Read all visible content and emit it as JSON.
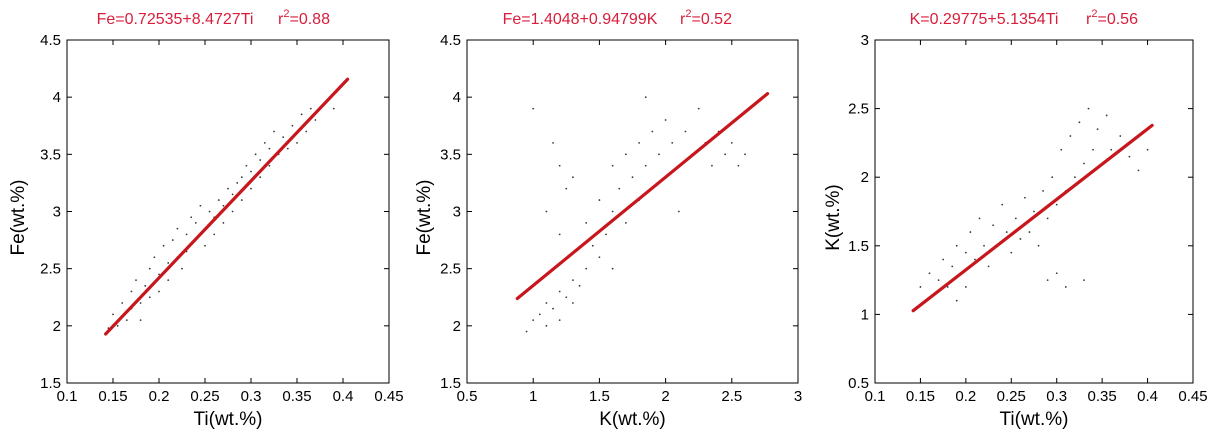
{
  "chart_data": [
    {
      "type": "scatter",
      "title": "Fe=0.72535+8.4727Ti",
      "r2_label": "r",
      "r2_value": "=0.88",
      "xlabel": "Ti(wt.%)",
      "ylabel": "Fe(wt.%)",
      "xlim": [
        0.1,
        0.45
      ],
      "ylim": [
        1.5,
        4.5
      ],
      "xticks": [
        "0.1",
        "0.15",
        "0.2",
        "0.25",
        "0.3",
        "0.35",
        "0.4",
        "0.45"
      ],
      "yticks": [
        "1.5",
        "2",
        "2.5",
        "3",
        "3.5",
        "4",
        "4.5"
      ],
      "fit": {
        "intercept": 0.72535,
        "slope": 8.4727,
        "x_range": [
          0.142,
          0.405
        ]
      },
      "points": [
        [
          0.145,
          1.98
        ],
        [
          0.15,
          2.1
        ],
        [
          0.155,
          2.0
        ],
        [
          0.16,
          2.2
        ],
        [
          0.165,
          2.05
        ],
        [
          0.17,
          2.3
        ],
        [
          0.17,
          2.15
        ],
        [
          0.175,
          2.4
        ],
        [
          0.18,
          2.2
        ],
        [
          0.18,
          2.05
        ],
        [
          0.185,
          2.35
        ],
        [
          0.19,
          2.5
        ],
        [
          0.19,
          2.25
        ],
        [
          0.195,
          2.6
        ],
        [
          0.2,
          2.3
        ],
        [
          0.2,
          2.45
        ],
        [
          0.205,
          2.7
        ],
        [
          0.21,
          2.55
        ],
        [
          0.21,
          2.4
        ],
        [
          0.215,
          2.75
        ],
        [
          0.22,
          2.6
        ],
        [
          0.22,
          2.85
        ],
        [
          0.225,
          2.5
        ],
        [
          0.23,
          2.8
        ],
        [
          0.23,
          2.65
        ],
        [
          0.235,
          2.95
        ],
        [
          0.24,
          2.75
        ],
        [
          0.24,
          2.9
        ],
        [
          0.245,
          3.05
        ],
        [
          0.25,
          2.85
        ],
        [
          0.25,
          2.7
        ],
        [
          0.255,
          3.0
        ],
        [
          0.26,
          2.95
        ],
        [
          0.26,
          2.8
        ],
        [
          0.265,
          3.1
        ],
        [
          0.27,
          2.9
        ],
        [
          0.27,
          3.05
        ],
        [
          0.275,
          3.2
        ],
        [
          0.28,
          3.0
        ],
        [
          0.28,
          3.15
        ],
        [
          0.285,
          3.25
        ],
        [
          0.29,
          3.1
        ],
        [
          0.29,
          3.3
        ],
        [
          0.295,
          3.4
        ],
        [
          0.3,
          3.2
        ],
        [
          0.3,
          3.35
        ],
        [
          0.305,
          3.5
        ],
        [
          0.31,
          3.3
        ],
        [
          0.31,
          3.45
        ],
        [
          0.315,
          3.6
        ],
        [
          0.32,
          3.4
        ],
        [
          0.32,
          3.55
        ],
        [
          0.325,
          3.7
        ],
        [
          0.33,
          3.5
        ],
        [
          0.335,
          3.65
        ],
        [
          0.34,
          3.55
        ],
        [
          0.345,
          3.75
        ],
        [
          0.35,
          3.6
        ],
        [
          0.355,
          3.85
        ],
        [
          0.36,
          3.7
        ],
        [
          0.365,
          3.9
        ],
        [
          0.37,
          3.8
        ],
        [
          0.38,
          3.95
        ],
        [
          0.39,
          3.9
        ]
      ]
    },
    {
      "type": "scatter",
      "title": "Fe=1.4048+0.94799K",
      "r2_label": "r",
      "r2_value": "=0.52",
      "xlabel": "K(wt.%)",
      "ylabel": "Fe(wt.%)",
      "xlim": [
        0.5,
        3.0
      ],
      "ylim": [
        1.5,
        4.5
      ],
      "xticks": [
        "0.5",
        "1",
        "1.5",
        "2",
        "2.5",
        "3"
      ],
      "yticks": [
        "1.5",
        "2",
        "2.5",
        "3",
        "3.5",
        "4",
        "4.5"
      ],
      "fit": {
        "intercept": 1.4048,
        "slope": 0.94799,
        "x_range": [
          0.88,
          2.77
        ]
      },
      "points": [
        [
          0.95,
          1.95
        ],
        [
          1.0,
          2.05
        ],
        [
          1.05,
          2.1
        ],
        [
          1.1,
          2.0
        ],
        [
          1.1,
          2.2
        ],
        [
          1.15,
          2.15
        ],
        [
          1.2,
          2.3
        ],
        [
          1.2,
          2.05
        ],
        [
          1.25,
          2.25
        ],
        [
          1.3,
          2.4
        ],
        [
          1.3,
          2.2
        ],
        [
          1.35,
          2.35
        ],
        [
          1.4,
          2.5
        ],
        [
          1.15,
          3.6
        ],
        [
          1.2,
          3.4
        ],
        [
          1.25,
          3.2
        ],
        [
          1.1,
          3.0
        ],
        [
          1.2,
          2.8
        ],
        [
          1.3,
          3.3
        ],
        [
          1.4,
          2.9
        ],
        [
          1.45,
          2.7
        ],
        [
          1.5,
          2.6
        ],
        [
          1.5,
          3.1
        ],
        [
          1.55,
          2.8
        ],
        [
          1.6,
          3.0
        ],
        [
          1.6,
          3.4
        ],
        [
          1.65,
          3.2
        ],
        [
          1.7,
          3.5
        ],
        [
          1.7,
          2.9
        ],
        [
          1.75,
          3.3
        ],
        [
          1.8,
          3.6
        ],
        [
          1.8,
          3.1
        ],
        [
          1.85,
          3.4
        ],
        [
          1.9,
          3.7
        ],
        [
          1.9,
          3.2
        ],
        [
          1.95,
          3.5
        ],
        [
          2.0,
          3.8
        ],
        [
          2.0,
          3.3
        ],
        [
          2.05,
          3.6
        ],
        [
          2.1,
          3.4
        ],
        [
          2.15,
          3.7
        ],
        [
          2.2,
          3.5
        ],
        [
          2.25,
          3.9
        ],
        [
          2.3,
          3.6
        ],
        [
          2.35,
          3.4
        ],
        [
          2.4,
          3.7
        ],
        [
          2.45,
          3.5
        ],
        [
          2.5,
          3.6
        ],
        [
          2.55,
          3.4
        ],
        [
          2.6,
          3.5
        ],
        [
          1.0,
          3.9
        ],
        [
          1.85,
          4.0
        ],
        [
          2.1,
          3.0
        ],
        [
          1.6,
          2.5
        ]
      ]
    },
    {
      "type": "scatter",
      "title": "K=0.29775+5.1354Ti",
      "r2_label": "r",
      "r2_value": "=0.56",
      "xlabel": "Ti(wt.%)",
      "ylabel": "K(wt.%)",
      "xlim": [
        0.1,
        0.45
      ],
      "ylim": [
        0.5,
        3.0
      ],
      "xticks": [
        "0.1",
        "0.15",
        "0.2",
        "0.25",
        "0.3",
        "0.35",
        "0.4",
        "0.45"
      ],
      "yticks": [
        "0.5",
        "1",
        "1.5",
        "2",
        "2.5",
        "3"
      ],
      "fit": {
        "intercept": 0.29775,
        "slope": 5.1354,
        "x_range": [
          0.142,
          0.405
        ]
      },
      "points": [
        [
          0.145,
          1.05
        ],
        [
          0.15,
          1.2
        ],
        [
          0.155,
          1.1
        ],
        [
          0.16,
          1.3
        ],
        [
          0.165,
          1.15
        ],
        [
          0.17,
          1.25
        ],
        [
          0.175,
          1.4
        ],
        [
          0.18,
          1.2
        ],
        [
          0.185,
          1.35
        ],
        [
          0.19,
          1.1
        ],
        [
          0.19,
          1.5
        ],
        [
          0.195,
          1.3
        ],
        [
          0.2,
          1.45
        ],
        [
          0.2,
          1.2
        ],
        [
          0.205,
          1.6
        ],
        [
          0.21,
          1.4
        ],
        [
          0.215,
          1.7
        ],
        [
          0.22,
          1.5
        ],
        [
          0.225,
          1.35
        ],
        [
          0.23,
          1.65
        ],
        [
          0.235,
          1.5
        ],
        [
          0.24,
          1.8
        ],
        [
          0.245,
          1.6
        ],
        [
          0.25,
          1.45
        ],
        [
          0.255,
          1.7
        ],
        [
          0.26,
          1.55
        ],
        [
          0.265,
          1.85
        ],
        [
          0.27,
          1.6
        ],
        [
          0.275,
          1.75
        ],
        [
          0.28,
          1.5
        ],
        [
          0.285,
          1.9
        ],
        [
          0.29,
          1.7
        ],
        [
          0.29,
          1.25
        ],
        [
          0.295,
          2.0
        ],
        [
          0.3,
          1.8
        ],
        [
          0.3,
          1.3
        ],
        [
          0.305,
          2.2
        ],
        [
          0.31,
          1.9
        ],
        [
          0.31,
          1.2
        ],
        [
          0.315,
          2.3
        ],
        [
          0.32,
          2.0
        ],
        [
          0.325,
          2.4
        ],
        [
          0.33,
          2.1
        ],
        [
          0.33,
          1.25
        ],
        [
          0.335,
          2.5
        ],
        [
          0.34,
          2.2
        ],
        [
          0.345,
          2.35
        ],
        [
          0.35,
          2.1
        ],
        [
          0.355,
          2.45
        ],
        [
          0.36,
          2.2
        ],
        [
          0.37,
          2.3
        ],
        [
          0.38,
          2.15
        ],
        [
          0.39,
          2.05
        ],
        [
          0.4,
          2.2
        ]
      ]
    }
  ]
}
